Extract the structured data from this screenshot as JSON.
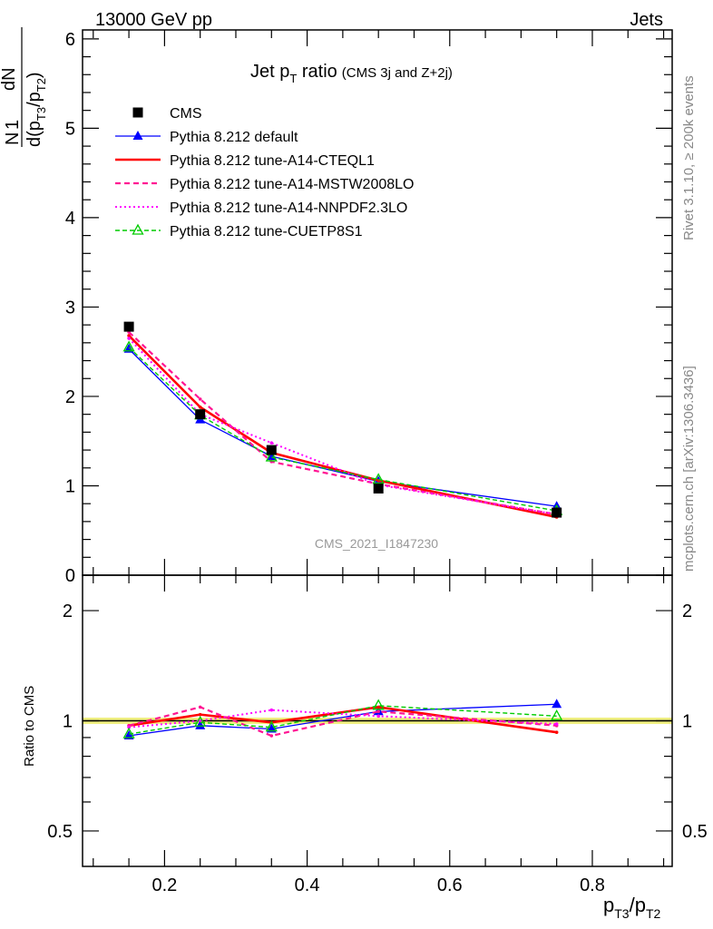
{
  "header": {
    "left": "13000 GeV pp",
    "right": "Jets"
  },
  "side_text": {
    "rivet": "Rivet 3.1.10, ≥ 200k events",
    "mcplots": "mcplots.cern.ch [arXiv:1306.3436]"
  },
  "watermark": "CMS_2021_I1847230",
  "chart_data": [
    {
      "type": "line",
      "title": "Jet p",
      "title_sub": "T",
      "title_rest": " ratio",
      "title_note": "(CMS 3j and Z+2j)",
      "ylabel_num": "1",
      "ylabel_den": "N",
      "ylabel_dN": "dN",
      "ylabel_d": "d(p",
      "ylabel_s1": "T3",
      "ylabel_mid": "/p",
      "ylabel_s2": "T2",
      "ylabel_end": ")",
      "xlim": [
        0.085,
        0.912
      ],
      "ylim": [
        0,
        6.1
      ],
      "yticks": [
        0,
        1,
        2,
        3,
        4,
        5,
        6
      ],
      "ytick_labels": [
        "0",
        "1",
        "2",
        "3",
        "4",
        "5",
        "6"
      ],
      "x": [
        0.15,
        0.25,
        0.35,
        0.5,
        0.75
      ],
      "legend_position": "top-left",
      "series": [
        {
          "name": "CMS",
          "color": "#000000",
          "style": "data",
          "values": [
            2.78,
            1.8,
            1.4,
            0.97,
            0.7
          ]
        },
        {
          "name": "Pythia 8.212 default",
          "color": "#0000ff",
          "style": "solid-thin",
          "marker": "filled-triangle",
          "values": [
            2.53,
            1.74,
            1.33,
            1.05,
            0.77
          ]
        },
        {
          "name": "Pythia 8.212 tune-A14-CTEQL1",
          "color": "#ff0000",
          "style": "solid-thick",
          "values": [
            2.68,
            1.88,
            1.37,
            1.06,
            0.65
          ]
        },
        {
          "name": "Pythia 8.212 tune-A14-MSTW2008LO",
          "color": "#ff1493",
          "style": "dashed",
          "values": [
            2.72,
            1.97,
            1.27,
            1.02,
            0.68
          ]
        },
        {
          "name": "Pythia 8.212 tune-A14-NNPDF2.3LO",
          "color": "#ff00ff",
          "style": "dotted",
          "values": [
            2.65,
            1.8,
            1.48,
            1.01,
            0.68
          ]
        },
        {
          "name": "Pythia 8.212 tune-CUETP8S1",
          "color": "#00cc00",
          "style": "dashed-thin",
          "marker": "open-triangle",
          "values": [
            2.55,
            1.79,
            1.32,
            1.07,
            0.72
          ]
        }
      ]
    },
    {
      "type": "line",
      "ylabel": "Ratio to CMS",
      "xlabel_p": "p",
      "xlabel_s1": "T3",
      "xlabel_mid": "/p",
      "xlabel_s2": "T2",
      "yscale": "log",
      "ylim": [
        0.4,
        2.5
      ],
      "xlim": [
        0.085,
        0.912
      ],
      "yticks": [
        0.5,
        1,
        2
      ],
      "ytick_labels": [
        "0.5",
        "1",
        "2"
      ],
      "xticks": [
        0.2,
        0.4,
        0.6,
        0.8
      ],
      "xtick_labels": [
        "0.2",
        "0.4",
        "0.6",
        "0.8"
      ],
      "cms_band": [
        0.98,
        1.02
      ],
      "x": [
        0.15,
        0.25,
        0.35,
        0.5,
        0.75
      ],
      "series": [
        {
          "name": "Pythia 8.212 default",
          "values": [
            0.91,
            0.97,
            0.95,
            1.06,
            1.11
          ]
        },
        {
          "name": "Pythia 8.212 tune-A14-CTEQL1",
          "values": [
            0.97,
            1.04,
            0.99,
            1.09,
            0.93
          ]
        },
        {
          "name": "Pythia 8.212 tune-A14-MSTW2008LO",
          "values": [
            0.97,
            1.09,
            0.91,
            1.06,
            0.97
          ]
        },
        {
          "name": "Pythia 8.212 tune-A14-NNPDF2.3LO",
          "values": [
            0.96,
            1.0,
            1.07,
            1.03,
            0.98
          ]
        },
        {
          "name": "Pythia 8.212 tune-CUETP8S1",
          "values": [
            0.92,
            0.99,
            0.96,
            1.1,
            1.03
          ]
        }
      ]
    }
  ]
}
